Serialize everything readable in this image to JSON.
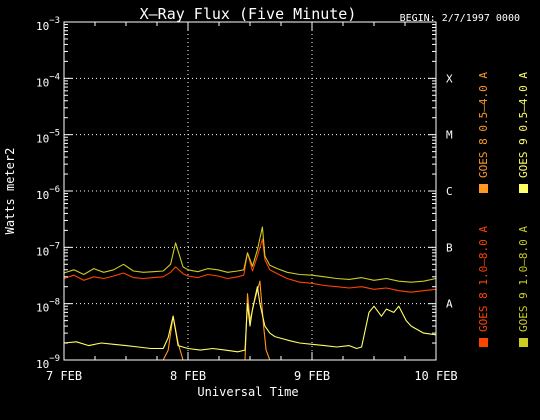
{
  "chart_data": {
    "type": "line",
    "title": "X–Ray Flux (Five Minute)",
    "begin_label": "BEGIN: 2/7/1997 0000",
    "xlabel": "Universal Time",
    "ylabel": "Watts meter2",
    "y_scale": "log",
    "ylim": [
      1e-09,
      0.001
    ],
    "x_unit": "days since begin (2/7/1997 0000)",
    "xlim": [
      0,
      3
    ],
    "grid": true,
    "legend_position": "right, vertical",
    "x_ticks": [
      {
        "value": 0,
        "label": "7 FEB"
      },
      {
        "value": 1,
        "label": "8 FEB"
      },
      {
        "value": 2,
        "label": "9 FEB"
      },
      {
        "value": 3,
        "label": "10 FEB"
      }
    ],
    "y_ticks": [
      {
        "value": 1e-09,
        "base": "10",
        "exp": "−9"
      },
      {
        "value": 1e-08,
        "base": "10",
        "exp": "−8"
      },
      {
        "value": 1e-07,
        "base": "10",
        "exp": "−7"
      },
      {
        "value": 1e-06,
        "base": "10",
        "exp": "−6"
      },
      {
        "value": 1e-05,
        "base": "10",
        "exp": "−5"
      },
      {
        "value": 0.0001,
        "base": "10",
        "exp": "−4"
      },
      {
        "value": 0.001,
        "base": "10",
        "exp": "−3"
      }
    ],
    "flare_classes": [
      {
        "label": "A",
        "value": 1e-08
      },
      {
        "label": "B",
        "value": 1e-07
      },
      {
        "label": "C",
        "value": 1e-06
      },
      {
        "label": "M",
        "value": 1e-05
      },
      {
        "label": "X",
        "value": 0.0001
      }
    ],
    "series": [
      {
        "name": "GOES 8 1.0–8.0 A",
        "color": "#ff4400",
        "x": [
          0,
          0.08,
          0.16,
          0.24,
          0.32,
          0.4,
          0.48,
          0.56,
          0.64,
          0.72,
          0.8,
          0.86,
          0.9,
          0.96,
          1.0,
          1.08,
          1.16,
          1.24,
          1.32,
          1.4,
          1.45,
          1.48,
          1.52,
          1.56,
          1.6,
          1.62,
          1.66,
          1.72,
          1.8,
          1.9,
          2.0,
          2.1,
          2.2,
          2.3,
          2.4,
          2.5,
          2.6,
          2.7,
          2.8,
          2.9,
          3.0
        ],
        "y": [
          2.8e-08,
          3.2e-08,
          2.6e-08,
          3e-08,
          2.8e-08,
          3.1e-08,
          3.5e-08,
          2.9e-08,
          2.8e-08,
          2.9e-08,
          3e-08,
          3.6e-08,
          4.5e-08,
          3.4e-08,
          3.1e-08,
          2.9e-08,
          3.3e-08,
          3.1e-08,
          2.8e-08,
          3e-08,
          3.2e-08,
          8e-08,
          3.8e-08,
          7e-08,
          1.4e-07,
          6e-08,
          4e-08,
          3.4e-08,
          2.8e-08,
          2.4e-08,
          2.3e-08,
          2.1e-08,
          2e-08,
          1.9e-08,
          2e-08,
          1.8e-08,
          1.9e-08,
          1.7e-08,
          1.6e-08,
          1.7e-08,
          1.8e-08
        ]
      },
      {
        "name": "GOES 8 0.5–4.0 A",
        "color": "#ff9922",
        "x": [
          0,
          0.1,
          0.2,
          0.3,
          0.4,
          0.5,
          0.6,
          0.7,
          0.8,
          0.84,
          0.88,
          0.92,
          0.96,
          1.0,
          1.1,
          1.2,
          1.3,
          1.4,
          1.46,
          1.48,
          1.5,
          1.54,
          1.58,
          1.61,
          1.63,
          1.66,
          1.7,
          1.8,
          1.9,
          2.0,
          2.2,
          2.4,
          2.6,
          2.8,
          3.0
        ],
        "y": [
          1e-09,
          1e-09,
          1e-09,
          1e-09,
          1e-09,
          1e-09,
          1e-09,
          1e-09,
          1e-09,
          1.5e-09,
          6e-09,
          2e-09,
          1e-09,
          1e-09,
          1e-09,
          1e-09,
          1e-09,
          1e-09,
          1e-09,
          1.5e-08,
          5e-09,
          1.2e-08,
          2.5e-08,
          4e-09,
          1.5e-09,
          1e-09,
          1e-09,
          1e-09,
          1e-09,
          1e-09,
          1e-09,
          1e-09,
          1e-09,
          1e-09,
          1e-09
        ]
      },
      {
        "name": "GOES 9 1.0–8.0 A",
        "color": "#cccc22",
        "x": [
          0,
          0.08,
          0.16,
          0.24,
          0.32,
          0.4,
          0.48,
          0.56,
          0.64,
          0.72,
          0.8,
          0.86,
          0.9,
          0.96,
          1.0,
          1.08,
          1.16,
          1.24,
          1.32,
          1.4,
          1.45,
          1.48,
          1.52,
          1.56,
          1.6,
          1.62,
          1.66,
          1.72,
          1.8,
          1.9,
          2.0,
          2.1,
          2.2,
          2.3,
          2.4,
          2.5,
          2.6,
          2.7,
          2.8,
          2.9,
          3.0
        ],
        "y": [
          3.5e-08,
          4e-08,
          3.3e-08,
          4.2e-08,
          3.6e-08,
          4e-08,
          5e-08,
          3.8e-08,
          3.6e-08,
          3.7e-08,
          3.8e-08,
          5e-08,
          1.2e-07,
          4.5e-08,
          4e-08,
          3.7e-08,
          4.2e-08,
          4e-08,
          3.6e-08,
          3.8e-08,
          4e-08,
          8e-08,
          4.6e-08,
          9e-08,
          2.3e-07,
          7e-08,
          4.8e-08,
          4.2e-08,
          3.6e-08,
          3.3e-08,
          3.2e-08,
          3e-08,
          2.8e-08,
          2.7e-08,
          2.9e-08,
          2.6e-08,
          2.8e-08,
          2.5e-08,
          2.4e-08,
          2.5e-08,
          2.8e-08
        ]
      },
      {
        "name": "GOES 9 0.5–4.0 A",
        "color": "#ffff66",
        "x": [
          0,
          0.1,
          0.2,
          0.3,
          0.4,
          0.5,
          0.6,
          0.7,
          0.8,
          0.84,
          0.88,
          0.92,
          1.0,
          1.1,
          1.2,
          1.3,
          1.4,
          1.46,
          1.48,
          1.5,
          1.52,
          1.56,
          1.58,
          1.62,
          1.66,
          1.7,
          1.76,
          1.82,
          1.9,
          2.0,
          2.1,
          2.2,
          2.3,
          2.36,
          2.4,
          2.46,
          2.5,
          2.56,
          2.6,
          2.66,
          2.7,
          2.76,
          2.8,
          2.9,
          3.0
        ],
        "y": [
          2e-09,
          2.1e-09,
          1.8e-09,
          2e-09,
          1.9e-09,
          1.8e-09,
          1.7e-09,
          1.6e-09,
          1.6e-09,
          2.5e-09,
          6e-09,
          1.8e-09,
          1.6e-09,
          1.5e-09,
          1.6e-09,
          1.5e-09,
          1.4e-09,
          1.5e-09,
          1e-08,
          4e-09,
          8e-09,
          2e-08,
          1e-08,
          4e-09,
          3e-09,
          2.6e-09,
          2.4e-09,
          2.2e-09,
          2e-09,
          1.9e-09,
          1.8e-09,
          1.7e-09,
          1.8e-09,
          1.6e-09,
          1.7e-09,
          7e-09,
          9e-09,
          6e-09,
          8e-09,
          7e-09,
          9e-09,
          5e-09,
          4e-09,
          3e-09,
          2.8e-09
        ]
      }
    ]
  }
}
